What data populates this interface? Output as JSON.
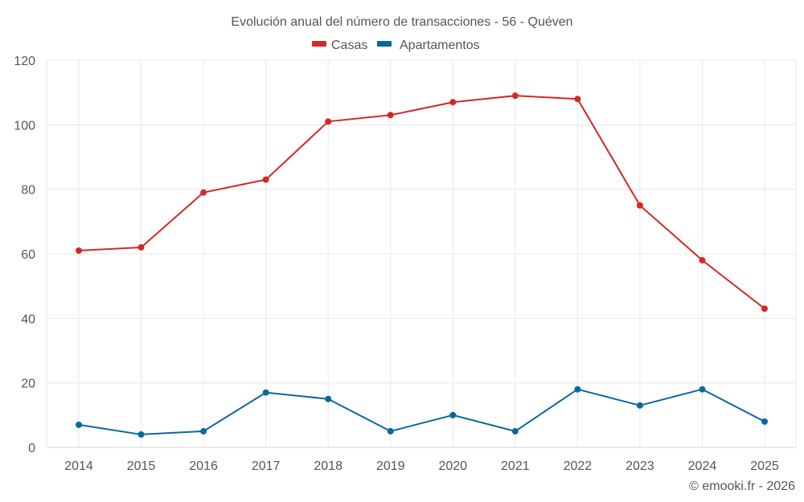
{
  "chart_data": {
    "type": "line",
    "title": "Evolución anual del número de transacciones - 56 - Quéven",
    "xlabel": "",
    "ylabel": "",
    "x": [
      "2014",
      "2015",
      "2016",
      "2017",
      "2018",
      "2019",
      "2020",
      "2021",
      "2022",
      "2023",
      "2024",
      "2025"
    ],
    "ylim": [
      0,
      120
    ],
    "yticks": [
      0,
      20,
      40,
      60,
      80,
      100,
      120
    ],
    "grid": true,
    "legend_position": "top-center",
    "series": [
      {
        "name": "Casas",
        "color": "#d62728",
        "values": [
          61,
          62,
          79,
          83,
          101,
          103,
          107,
          109,
          108,
          75,
          58,
          43
        ]
      },
      {
        "name": "Apartamentos",
        "color": "#0868a0",
        "values": [
          7,
          4,
          5,
          17,
          15,
          5,
          10,
          5,
          18,
          13,
          18,
          8
        ]
      }
    ],
    "credit": "© emooki.fr - 2026"
  }
}
